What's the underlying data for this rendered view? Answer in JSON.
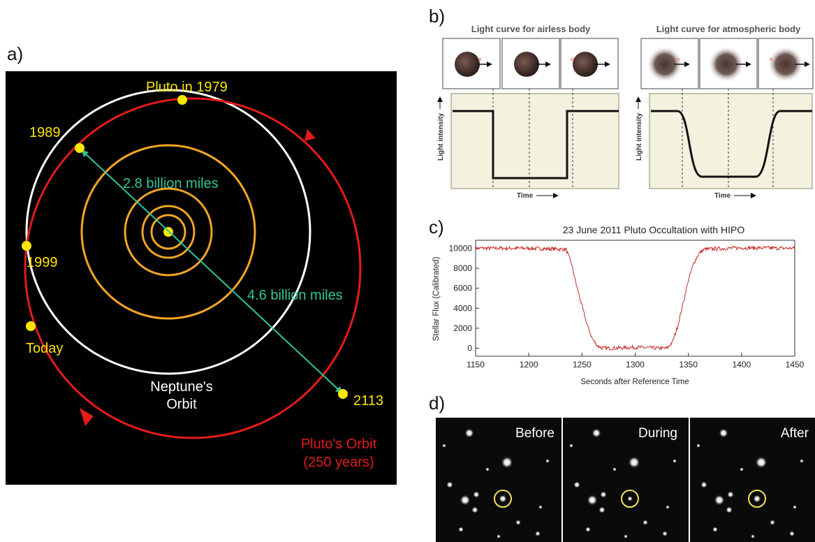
{
  "panel_labels": {
    "a": "a)",
    "b": "b)",
    "c": "c)",
    "d": "d)"
  },
  "orbit_diagram": {
    "labels": {
      "pluto_1979": "Pluto in 1979",
      "y1989": "1989",
      "y1999": "1999",
      "today": "Today",
      "y2113": "2113",
      "dist_near": "2.8 billion miles",
      "dist_far": "4.6 billion miles",
      "neptune_line1": "Neptune's",
      "neptune_line2": "Orbit",
      "pluto_orbit_line1": "Pluto's Orbit",
      "pluto_orbit_line2": "(250 years)"
    },
    "colors": {
      "background": "#000000",
      "pluto_orbit": "#e41b1b",
      "neptune_orbit": "#ffffff",
      "inner_orbits": "#f5a623",
      "markers": "#ffe600",
      "distance_arrow": "#2fc79a"
    }
  },
  "light_curves": {
    "airless": {
      "title": "Light curve for airless body"
    },
    "atmospheric": {
      "title": "Light curve for atmospheric body"
    },
    "ylabel": "Light intensity",
    "xlabel": "Time"
  },
  "chart_data": {
    "type": "line",
    "title": "23 June 2011 Pluto Occultation with HIPO",
    "xlabel": "Seconds after Reference Time",
    "ylabel": "Stellar Flux (Calibrated)",
    "xlim": [
      1150,
      1450
    ],
    "ylim": [
      -800,
      10800
    ],
    "xticks": [
      1150,
      1200,
      1250,
      1300,
      1350,
      1400,
      1450
    ],
    "yticks": [
      0,
      2000,
      4000,
      6000,
      8000,
      10000
    ],
    "grid": false,
    "series": [
      {
        "color": "#c62828",
        "x": [
          1150,
          1200,
          1235,
          1240,
          1245,
          1250,
          1255,
          1260,
          1265,
          1270,
          1280,
          1300,
          1320,
          1330,
          1335,
          1340,
          1345,
          1350,
          1355,
          1360,
          1365,
          1400,
          1450
        ],
        "y": [
          10000,
          10000,
          9900,
          8500,
          6200,
          4200,
          2300,
          900,
          200,
          0,
          0,
          100,
          0,
          0,
          600,
          2200,
          4500,
          6800,
          8500,
          9500,
          9900,
          10050,
          10000
        ]
      }
    ]
  },
  "frames": {
    "before": "Before",
    "during": "During",
    "after": "After"
  }
}
